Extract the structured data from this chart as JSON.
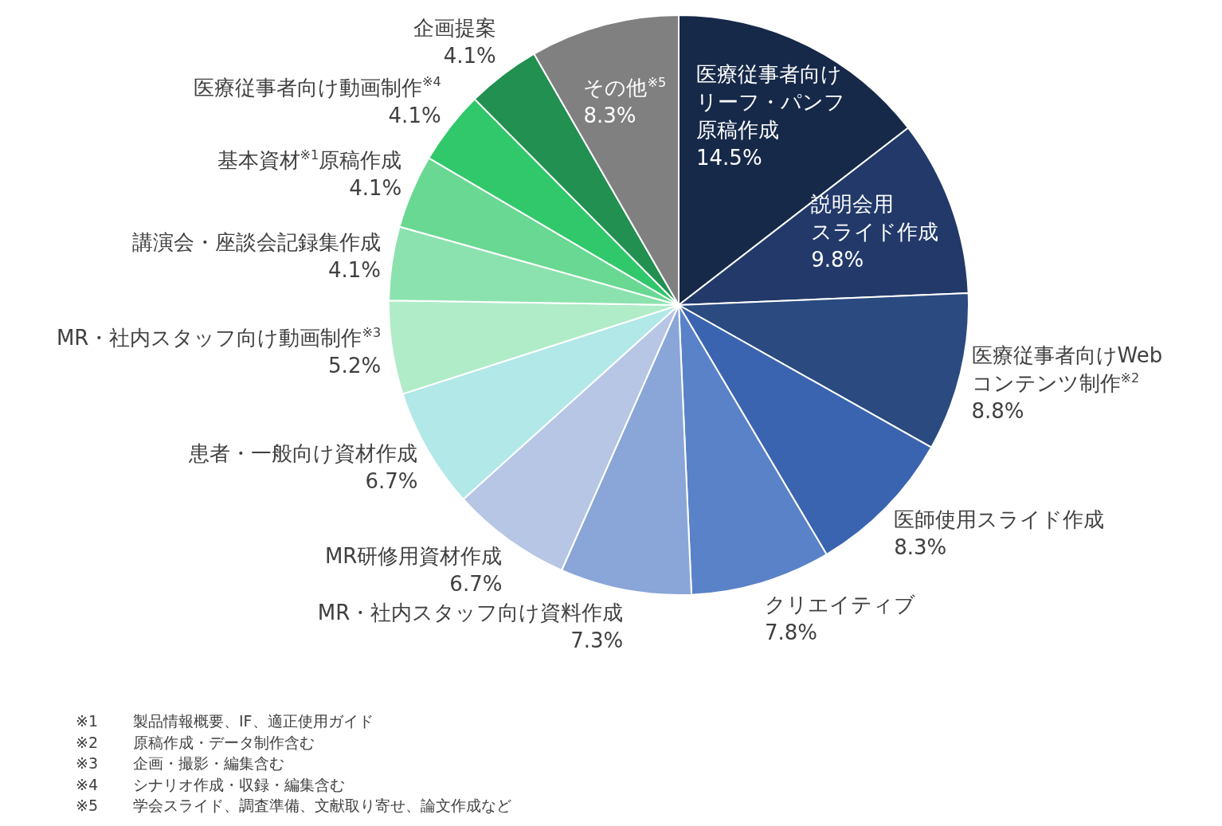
{
  "chart_data": {
    "type": "pie",
    "categories": [
      "医療従事者向けリーフ・パンフ原稿作成",
      "説明会用スライド作成",
      "医療従事者向けWebコンテンツ制作$^{※2}$",
      "医師使用スライド作成",
      "クリエイティブ",
      "MR・社内スタッフ向け資料作成",
      "MR研修用資材作成",
      "患者・一般向け資材作成",
      "MR・社内スタッフ向け動画制作$^{※3}$",
      "講演会・座談会記録集作成",
      "基本資材$^{※1}$原稿作成",
      "医療従事者向け動画制作$^{※4}$",
      "企画提案",
      "その他$^{※5}$"
    ],
    "values": [
      14.5,
      9.8,
      8.8,
      8.3,
      7.8,
      7.3,
      6.7,
      6.7,
      5.2,
      4.1,
      4.1,
      4.1,
      4.1,
      8.3
    ],
    "value_labels": [
      "14.5%",
      "9.8%",
      "8.8%",
      "8.3%",
      "7.8%",
      "7.3%",
      "6.7%",
      "6.7%",
      "5.2%",
      "4.1%",
      "4.1%",
      "4.1%",
      "4.1%",
      "8.3%"
    ],
    "colors": [
      "#172949",
      "#22396a",
      "#2a4a80",
      "#3a64b0",
      "#5a82c8",
      "#8aa6d8",
      "#b6c6e4",
      "#b2e8e8",
      "#b0ecc8",
      "#8ce2ae",
      "#68d892",
      "#30c86a",
      "#229050",
      "#808080"
    ],
    "legend": false,
    "annotations": [
      "※1 製品情報概要、IF、適正使用ガイド",
      "※2 原稿作成・データ制作含む",
      "※3 企画・撮影・編集含む",
      "※4 シナリオ作成・収録・編集含む",
      "※5 学会スライド、調査準備、文献取り寄せ、論文作成など"
    ]
  }
}
